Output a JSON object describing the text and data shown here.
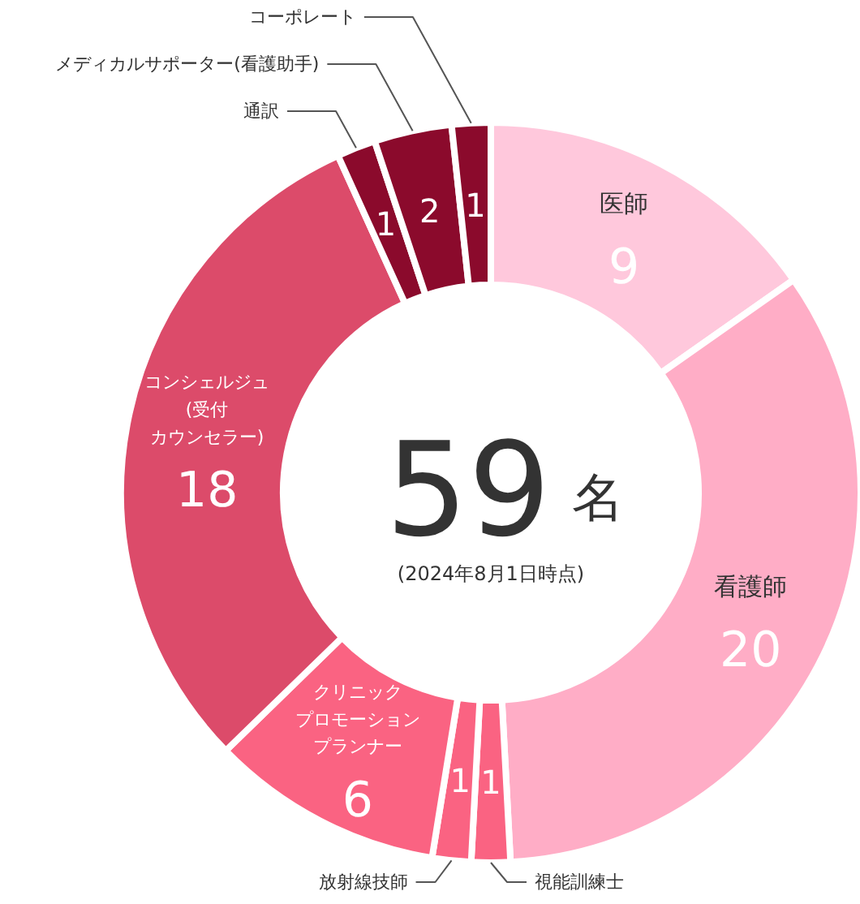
{
  "chart_data": {
    "type": "donut",
    "categories": [
      "医師",
      "看護師",
      "視能訓練士",
      "放射線技師",
      "クリニックプロモーションプランナー",
      "コンシェルジュ(受付カウンセラー)",
      "通訳",
      "メディカルサポーター(看護助手)",
      "コーポレート"
    ],
    "values": [
      9,
      20,
      1,
      1,
      6,
      18,
      1,
      2,
      1
    ],
    "colors": [
      "#ffc8dc",
      "#ffadc6",
      "#fa6382",
      "#fa6382",
      "#fa6382",
      "#dc4b6a",
      "#8b0a2c",
      "#8b0a2c",
      "#8b0a2c"
    ],
    "data_labels": true,
    "annotations": [
      "59",
      "名",
      "(2024年8月1日時点)"
    ]
  }
}
